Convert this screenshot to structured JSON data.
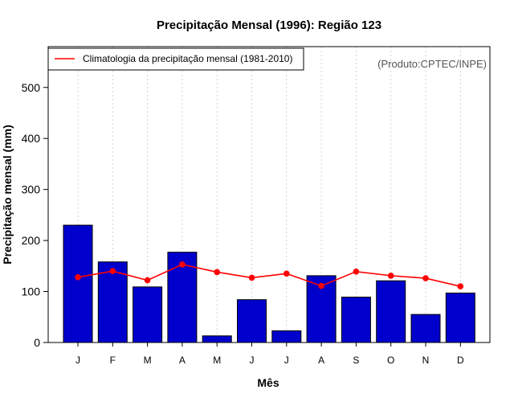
{
  "chart_data": {
    "type": "bar",
    "title": "Precipitação Mensal (1996): Região 123",
    "xlabel": "Mês",
    "ylabel": "Precipitação mensal (mm)",
    "ylim": [
      0,
      580
    ],
    "yticks": [
      0,
      100,
      200,
      300,
      400,
      500
    ],
    "grid": true,
    "categories": [
      "J",
      "F",
      "M",
      "A",
      "M",
      "J",
      "J",
      "A",
      "S",
      "O",
      "N",
      "D"
    ],
    "series": [
      {
        "name": "Precipitação mensal (1996)",
        "type": "bar",
        "color": "#0000cc",
        "values": [
          230,
          158,
          109,
          177,
          13,
          84,
          23,
          131,
          89,
          121,
          55,
          97
        ]
      },
      {
        "name": "Climatologia da precipitação mensal (1981-2010)",
        "type": "line",
        "color": "#ff0000",
        "values": [
          128,
          140,
          122,
          153,
          138,
          127,
          135,
          111,
          139,
          131,
          126,
          110
        ]
      }
    ],
    "legend": {
      "position": "top-left",
      "entries": [
        "Climatologia da precipitação mensal (1981-2010)"
      ]
    },
    "annotation": "(Produto:CPTEC/INPE)"
  }
}
